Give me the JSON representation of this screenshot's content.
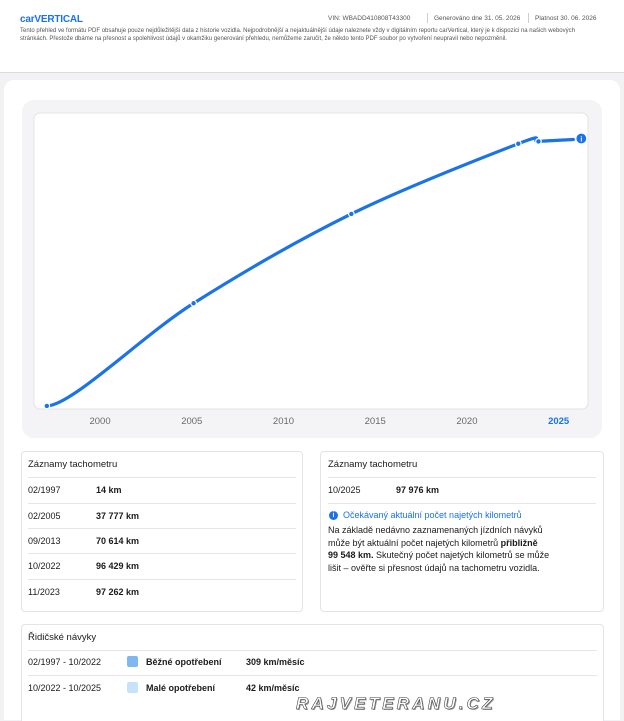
{
  "header": {
    "logo_prefix": "carV",
    "logo_suffix": "ERTICAL",
    "vin": "VIN:  WBADD410808T43300",
    "generated": "Generováno dne  31. 05. 2026",
    "valid": "Platnost  30. 06. 2026",
    "disclaimer": "Tento přehled ve formátu PDF obsahuje pouze nejdůležitější data z historie vozidla. Nejpodrobnější a nejaktuálnější údaje naleznete vždy v digitálním reportu carVertical, který je k dispozici na našich webových stránkách. Přestože dbáme na přesnost a spolehlivost údajů v okamžiku generování přehledu, nemůžeme zaručit, že někdo tento PDF soubor po vytvoření neupravil nebo nepozměnil."
  },
  "colors": {
    "accent": "#1a73e8",
    "normal_wear": "#7fb8f0",
    "low_wear": "#c7e3fb"
  },
  "chart_data": {
    "type": "line",
    "x": [
      1997.1,
      2005.1,
      2013.7,
      2022.8,
      2023.9,
      2025.8
    ],
    "y": [
      14,
      37777,
      70614,
      96429,
      97262,
      97976
    ],
    "xlabel": "",
    "ylabel": "",
    "xlim": [
      1996.4,
      2026.6
    ],
    "x_ticks": [
      "2000",
      "2005",
      "2010",
      "2015",
      "2020",
      "2025"
    ],
    "highlight_tick": "2025",
    "info_icon": "info-icon",
    "grid": false
  },
  "odometer_records": {
    "title": "Záznamy tachometru",
    "rows": [
      {
        "date": "02/1997",
        "km": "14 km"
      },
      {
        "date": "02/2005",
        "km": "37 777 km"
      },
      {
        "date": "09/2013",
        "km": "70 614 km"
      },
      {
        "date": "10/2022",
        "km": "96 429 km"
      },
      {
        "date": "11/2023",
        "km": "97 262 km"
      }
    ]
  },
  "expected": {
    "title": "Záznamy tachometru",
    "date": "10/2025",
    "km": "97 976 km",
    "info_title": "Očekávaný aktuální počet najetých kilometrů",
    "info_icon": "info-icon",
    "line1": "Na základě nedávno zaznamenaných jízdních návyků",
    "line2a": "může být aktuální počet najetých kilometrů ",
    "line2b": "přibližně",
    "line3a": "99 548 km.",
    "line3b": " Skutečný počet najetých kilometrů se může",
    "line4": "lišit – ověřte si přesnost údajů na tachometru vozidla."
  },
  "driving": {
    "title": "Řidičské návyky",
    "rows": [
      {
        "period": "02/1997 - 10/2022",
        "wear": "Běžné opotřebení",
        "rate": "309 km/měsíc"
      },
      {
        "period": "10/2022 - 10/2025",
        "wear": "Malé opotřebení",
        "rate": "42 km/měsíc"
      }
    ]
  },
  "watermark": "RAJVETERANU.CZ"
}
